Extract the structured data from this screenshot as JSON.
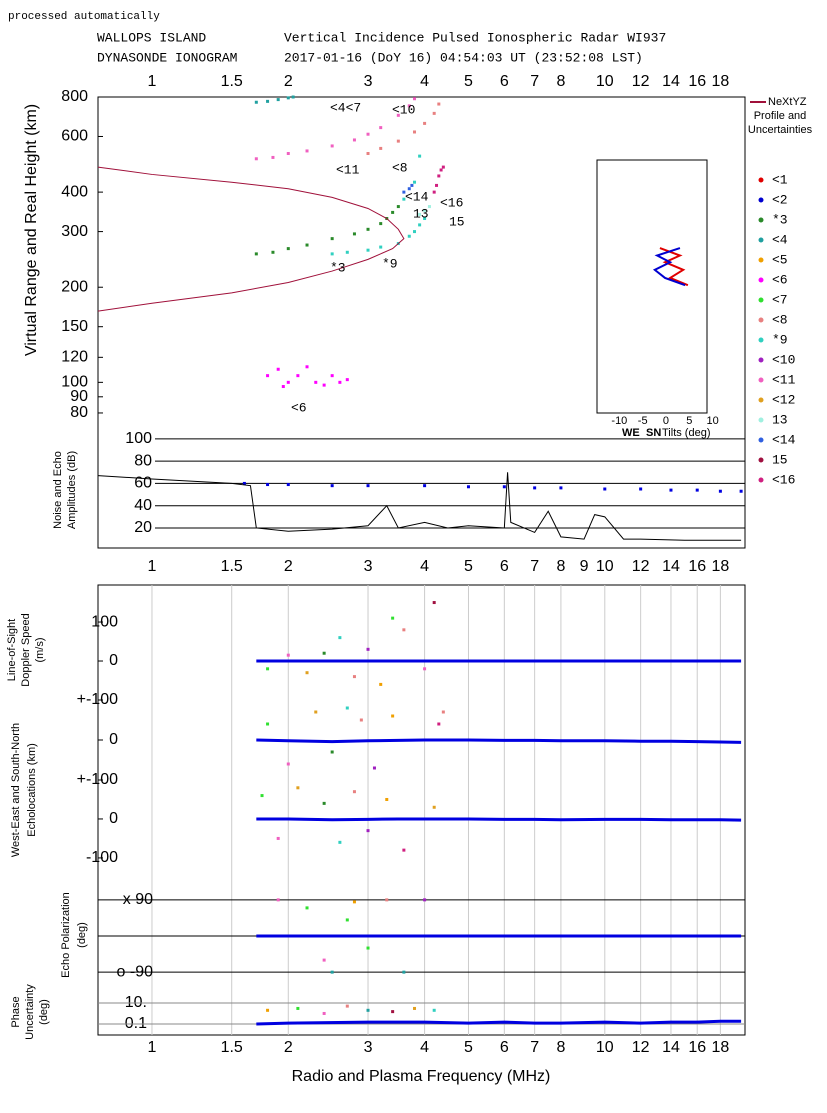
{
  "header": {
    "note": "processed automatically",
    "station": "WALLOPS ISLAND",
    "instrument": "Vertical Incidence Pulsed Ionospheric Radar WI937",
    "product": "DYNASONDE IONOGRAM",
    "time": "2017-01-16 (DoY  16)   04:54:03 UT (23:52:08 LST)"
  },
  "frequency_axis": {
    "xlog": true,
    "xlim": [
      0.76,
      20.4
    ],
    "xlabel": "Radio and Plasma Frequency (MHz)",
    "xticks_top": [
      1,
      1.5,
      2,
      3,
      4,
      5,
      6,
      7,
      8,
      10,
      12,
      14,
      16,
      18
    ],
    "xticks_middle": [
      1,
      1.5,
      2,
      3,
      4,
      5,
      6,
      7,
      8,
      9,
      10,
      12,
      14,
      16,
      18
    ],
    "xticks_bottom": [
      1,
      1.5,
      2,
      3,
      4,
      5,
      6,
      7,
      8,
      10,
      12,
      14,
      16,
      18
    ]
  },
  "chart_data": [
    {
      "type": "scatter",
      "ylog": true,
      "ylabel": "Virtual Range and Real Height (km)",
      "ylim": [
        76,
        800
      ],
      "yticks": [
        80,
        90,
        100,
        120,
        150,
        200,
        300,
        400,
        600,
        800
      ],
      "annotations": [
        "<4<7",
        "<10",
        "<11",
        "<8",
        "<14",
        "13",
        "<16",
        "15",
        "*3",
        "*9",
        "<6"
      ],
      "profile": {
        "name": "NeXtYZ",
        "legend_lines": [
          "Profile and",
          "Uncertainties"
        ],
        "color": "#a0103a",
        "x": [
          0.76,
          1,
          1.5,
          2,
          2.5,
          3,
          3.3,
          3.5,
          3.6,
          3.4,
          3,
          2.5,
          2,
          1.5,
          1,
          0.76
        ],
        "values": [
          480,
          455,
          430,
          410,
          385,
          355,
          330,
          305,
          285,
          265,
          245,
          225,
          207,
          192,
          178,
          168
        ]
      },
      "series": [
        {
          "name": "<1",
          "color": "#e00000",
          "x": [],
          "values": []
        },
        {
          "name": "<2",
          "color": "#0000d0",
          "x": [],
          "values": []
        },
        {
          "name": "*3",
          "color": "#2a8a2a",
          "x": [
            1.7,
            1.85,
            2,
            2.2,
            2.5,
            2.8,
            3,
            3.2,
            3.3,
            3.4,
            3.5
          ],
          "values": [
            255,
            258,
            265,
            272,
            285,
            295,
            305,
            318,
            330,
            345,
            360
          ]
        },
        {
          "name": "<4",
          "color": "#20a0a0",
          "x": [
            1.7,
            1.8,
            1.9,
            2,
            2.05
          ],
          "values": [
            770,
            775,
            785,
            795,
            800
          ]
        },
        {
          "name": "<5",
          "color": "#f0a000",
          "x": [],
          "values": []
        },
        {
          "name": "<6",
          "color": "#ff00ff",
          "x": [
            1.8,
            1.9,
            1.95,
            2,
            2.1,
            2.2,
            2.3,
            2.4,
            2.5,
            2.6,
            2.7
          ],
          "values": [
            105,
            110,
            97,
            100,
            105,
            112,
            100,
            98,
            105,
            100,
            102
          ]
        },
        {
          "name": "<7",
          "color": "#30e030",
          "x": [],
          "values": []
        },
        {
          "name": "<8",
          "color": "#e88080",
          "x": [
            3,
            3.2,
            3.5,
            3.8,
            4,
            4.2,
            4.3
          ],
          "values": [
            530,
            550,
            580,
            620,
            660,
            710,
            760
          ]
        },
        {
          "name": "*9",
          "color": "#30d0c0",
          "x": [
            2.5,
            2.7,
            3,
            3.2,
            3.5,
            3.7,
            3.8,
            3.9,
            4,
            3.6,
            3.8,
            3.9
          ],
          "values": [
            255,
            258,
            262,
            268,
            275,
            290,
            300,
            315,
            330,
            380,
            430,
            520
          ]
        },
        {
          "name": "<10",
          "color": "#a020c0",
          "x": [],
          "values": []
        },
        {
          "name": "<11",
          "color": "#f060c0",
          "x": [
            1.7,
            1.85,
            2,
            2.2,
            2.5,
            2.8,
            3,
            3.2,
            3.5,
            3.7,
            3.8
          ],
          "values": [
            510,
            515,
            530,
            540,
            560,
            585,
            610,
            640,
            700,
            750,
            790
          ]
        },
        {
          "name": "<12",
          "color": "#e0a020",
          "x": [],
          "values": []
        },
        {
          "name": "13",
          "color": "#a0f0e0",
          "x": [
            3.9,
            4,
            4.1
          ],
          "values": [
            340,
            350,
            360
          ]
        },
        {
          "name": "<14",
          "color": "#3060e0",
          "x": [
            3.6,
            3.7,
            3.75
          ],
          "values": [
            400,
            410,
            420
          ]
        },
        {
          "name": "15",
          "color": "#a01040",
          "x": [],
          "values": []
        },
        {
          "name": "<16",
          "color": "#d02080",
          "x": [
            4.2,
            4.25,
            4.3,
            4.35,
            4.4
          ],
          "values": [
            400,
            420,
            450,
            470,
            480
          ]
        }
      ]
    },
    {
      "type": "line",
      "xlim": [
        -14.8,
        8.8
      ],
      "xticks": [
        -10,
        -5,
        0,
        5,
        10
      ],
      "xlabel": "Tilts (deg)",
      "series": [
        {
          "name": "WE",
          "color": "#e00000",
          "x": [
            -1.3,
            3,
            -0.2,
            3.7,
            0.9,
            4.7
          ],
          "values": [
            266,
            252,
            240,
            227,
            214,
            203
          ]
        },
        {
          "name": "SN",
          "color": "#0000d0",
          "x": [
            3,
            -1.9,
            0.9,
            -2.4,
            -0.2,
            4.1
          ],
          "values": [
            266,
            252,
            240,
            227,
            214,
            203
          ]
        }
      ]
    },
    {
      "type": "line",
      "ylabel": [
        "Noise and Echo",
        "Amplitudes (dB)"
      ],
      "ylim": [
        2,
        108
      ],
      "yticks": [
        20,
        40,
        60,
        80,
        100
      ],
      "series": [
        {
          "style": "dots",
          "color": "#0000e0",
          "x": [
            1.6,
            1.8,
            2,
            2.5,
            3,
            4,
            5,
            6,
            7,
            8,
            10,
            12,
            14,
            16,
            18,
            20
          ],
          "values": [
            60,
            59,
            59,
            58,
            58,
            58,
            57,
            57,
            56,
            56,
            55,
            55,
            54,
            54,
            53,
            53
          ]
        },
        {
          "style": "line",
          "color": "#000000",
          "x": [
            0.76,
            1,
            1.5,
            1.65,
            1.7,
            2,
            2.5,
            3,
            3.3,
            3.5,
            4,
            4.5,
            5,
            6,
            6.1,
            6.2,
            7,
            7.5,
            8,
            9,
            9.5,
            10,
            11,
            12,
            15,
            20
          ],
          "values": [
            67,
            64,
            60,
            58,
            20,
            17,
            19,
            22,
            40,
            20,
            25,
            20,
            22,
            20,
            70,
            25,
            16,
            35,
            12,
            10,
            32,
            30,
            10,
            10,
            9,
            9
          ]
        }
      ]
    },
    {
      "type": "scatter",
      "ylabel": [
        "Line-of-Sight",
        "Doppler Speed",
        "(m/s)"
      ],
      "ylim": [
        -100,
        195
      ],
      "yticks": [
        100,
        0
      ],
      "series": [
        {
          "style": "line",
          "color": "#0000e0",
          "x": [
            1.7,
            2,
            2.5,
            3,
            3.5,
            4,
            4.5,
            5,
            6,
            7,
            8,
            10,
            12,
            14,
            16,
            18,
            20
          ],
          "values": [
            0,
            0,
            0,
            0,
            0,
            0,
            0,
            0,
            0,
            0,
            0,
            0,
            0,
            0,
            0,
            0,
            0
          ]
        },
        {
          "style": "dots",
          "colors": [
            "#30e030",
            "#f060c0",
            "#e0a020",
            "#2a8a2a",
            "#30d0c0",
            "#e88080",
            "#a020c0",
            "#f0a000",
            "#30e030",
            "#e88080",
            "#f060c0",
            "#a01040"
          ],
          "x": [
            1.8,
            2,
            2.2,
            2.4,
            2.6,
            2.8,
            3,
            3.2,
            3.4,
            3.6,
            4,
            4.2
          ],
          "values": [
            -20,
            15,
            -30,
            20,
            60,
            -40,
            30,
            -60,
            110,
            80,
            -20,
            150
          ]
        }
      ]
    },
    {
      "type": "scatter",
      "ylabel": [
        "West-East and South-North",
        "Echolocations (km)"
      ],
      "ylim": [
        -100,
        100
      ],
      "yticks": [
        {
          "value": 100,
          "label": "+-100"
        },
        0
      ],
      "series": [
        {
          "style": "line",
          "color": "#0000e0",
          "x": [
            1.7,
            2,
            2.5,
            3,
            3.5,
            4,
            4.5,
            5,
            6,
            7,
            8,
            10,
            12,
            14,
            16,
            18,
            20
          ],
          "values": [
            0,
            -2,
            -4,
            -2,
            -1,
            0,
            0,
            0,
            -1,
            -1,
            -2,
            -2,
            -3,
            -3,
            -4,
            -5,
            -6
          ]
        },
        {
          "style": "dots",
          "colors": [
            "#30e030",
            "#f060c0",
            "#e0a020",
            "#2a8a2a",
            "#30d0c0",
            "#e88080",
            "#a020c0",
            "#f0a000",
            "#d02080",
            "#e88080"
          ],
          "x": [
            1.8,
            2,
            2.3,
            2.5,
            2.7,
            2.9,
            3.1,
            3.4,
            4.3,
            4.4
          ],
          "values": [
            40,
            -60,
            70,
            -30,
            80,
            50,
            -70,
            60,
            40,
            70
          ]
        }
      ]
    },
    {
      "type": "scatter",
      "ylim": [
        -131,
        100
      ],
      "yticks": [
        {
          "value": 100,
          "label": "+-100"
        },
        0,
        -100
      ],
      "series": [
        {
          "style": "line",
          "color": "#0000e0",
          "x": [
            1.7,
            2,
            2.5,
            3,
            3.5,
            4,
            4.5,
            5,
            6,
            7,
            8,
            10,
            12,
            14,
            16,
            18,
            20
          ],
          "values": [
            0,
            0,
            -2,
            -1,
            0,
            0,
            0,
            0,
            -1,
            -1,
            -2,
            -1,
            -1,
            -2,
            -2,
            -2,
            -3
          ]
        },
        {
          "style": "dots",
          "colors": [
            "#30e030",
            "#f060c0",
            "#e0a020",
            "#2a8a2a",
            "#30d0c0",
            "#e88080",
            "#a020c0",
            "#f0a000",
            "#d02080",
            "#e0a020"
          ],
          "x": [
            1.75,
            1.9,
            2.1,
            2.4,
            2.6,
            2.8,
            3,
            3.3,
            3.6,
            4.2
          ],
          "values": [
            60,
            -50,
            80,
            40,
            -60,
            70,
            -30,
            50,
            -80,
            30
          ]
        }
      ]
    },
    {
      "type": "scatter",
      "ylabel": [
        "Echo Polarization",
        "(deg)"
      ],
      "zero_line": true,
      "ylim": [
        -122,
        127
      ],
      "yticks": [
        {
          "value": 90,
          "label": "x 90"
        },
        {
          "value": -90,
          "label": "o -90"
        }
      ],
      "series": [
        {
          "style": "line",
          "color": "#0000e0",
          "x": [
            1.7,
            2,
            3,
            4,
            5,
            6,
            7,
            8,
            10,
            12,
            14,
            16,
            18,
            20
          ],
          "values": [
            0,
            0,
            0,
            0,
            0,
            0,
            0,
            0,
            0,
            0,
            0,
            0,
            0,
            0
          ]
        },
        {
          "style": "dots",
          "colors": [
            "#f060c0",
            "#30e030",
            "#20a0a0",
            "#f0a000",
            "#30e030",
            "#e88080",
            "#20a0a0",
            "#a020c0",
            "#f060c0",
            "#30e030"
          ],
          "x": [
            1.9,
            2.2,
            2.5,
            2.8,
            3,
            3.3,
            3.6,
            4,
            2.4,
            2.7
          ],
          "values": [
            90,
            70,
            -90,
            85,
            -30,
            90,
            -90,
            90,
            -60,
            40
          ]
        }
      ]
    },
    {
      "type": "scatter",
      "ylabel": [
        "Phase",
        "Uncertainty",
        "(deg)"
      ],
      "ylog": true,
      "ylim": [
        0.009,
        170
      ],
      "yticks": [
        {
          "value": 10,
          "label": "10."
        },
        0.1
      ],
      "series": [
        {
          "style": "line",
          "color": "#0000e0",
          "x": [
            1.7,
            2,
            3,
            4,
            5,
            6,
            7,
            8,
            10,
            12,
            14,
            16,
            18,
            20
          ],
          "values": [
            0.1,
            0.12,
            0.15,
            0.15,
            0.12,
            0.15,
            0.12,
            0.12,
            0.15,
            0.12,
            0.15,
            0.15,
            0.18,
            0.18
          ]
        },
        {
          "style": "dots",
          "colors": [
            "#f0a000",
            "#30e030",
            "#f060c0",
            "#e88080",
            "#20a0a0",
            "#a01040",
            "#e0a020",
            "#30d0c0"
          ],
          "x": [
            1.8,
            2.1,
            2.4,
            2.7,
            3,
            3.4,
            3.8,
            4.2
          ],
          "values": [
            2,
            3,
            1,
            5,
            2,
            1.5,
            3,
            2
          ]
        }
      ]
    }
  ]
}
